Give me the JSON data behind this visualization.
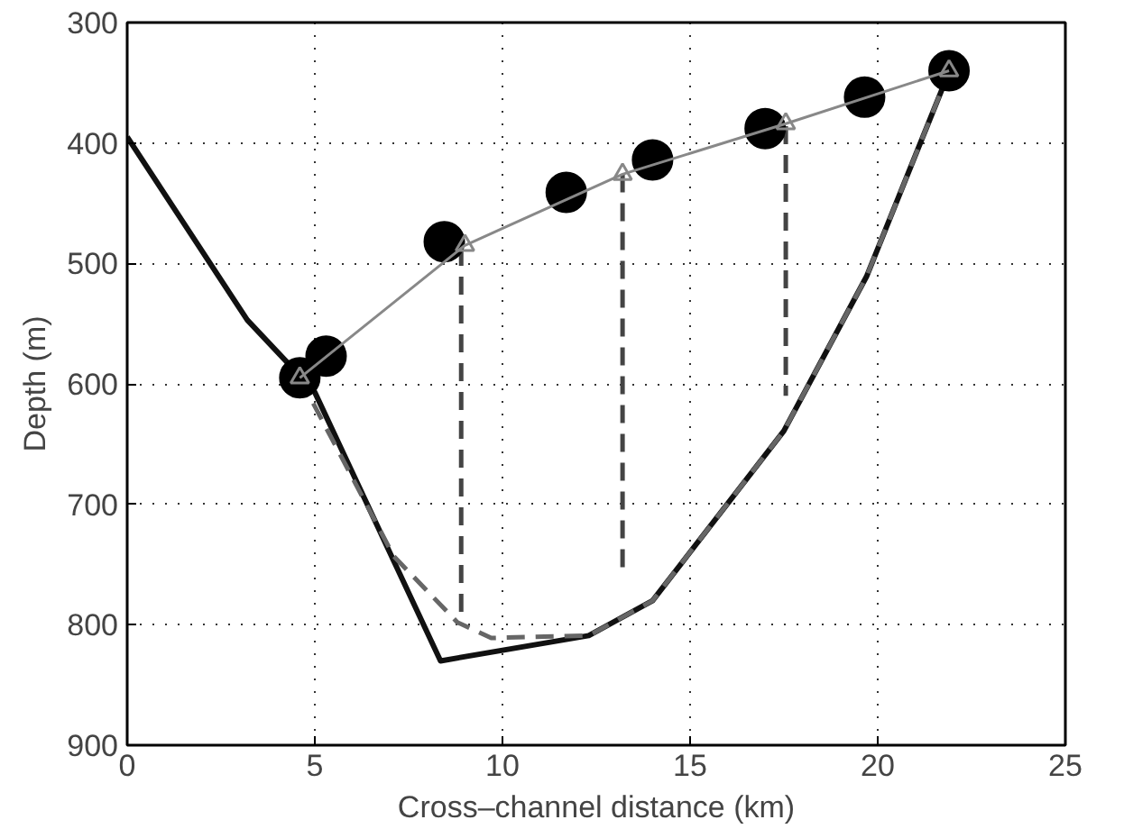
{
  "chart_data": {
    "type": "line",
    "xlabel": "Cross–channel distance (km)",
    "ylabel": "Depth (m)",
    "xlim": [
      0,
      25
    ],
    "ylim": [
      900,
      300
    ],
    "xticks": [
      0,
      5,
      10,
      15,
      20,
      25
    ],
    "yticks": [
      300,
      400,
      500,
      600,
      700,
      800,
      900
    ],
    "grid": true,
    "series": [
      {
        "color": "#111111",
        "line_style": "solid",
        "x": [
          0,
          3.2,
          4.5,
          5.0,
          8.35,
          12.3,
          14.0,
          17.5,
          19.7,
          21.9
        ],
        "values": [
          395,
          547,
          590,
          607,
          830,
          809,
          780,
          639,
          511,
          341
        ]
      },
      {
        "color": "#666666",
        "line_style": "dashed",
        "x": [
          4.6,
          7.1,
          8.8,
          9.7,
          12.3,
          14.0,
          17.5,
          19.7,
          21.9
        ],
        "values": [
          595,
          743,
          798,
          811,
          809,
          780,
          639,
          511,
          341
        ]
      },
      {
        "color": "#444444",
        "line_style": "dashed",
        "x": [
          8.9,
          8.9
        ],
        "values": [
          487,
          798
        ]
      },
      {
        "color": "#444444",
        "line_style": "dashed",
        "x": [
          13.2,
          13.2
        ],
        "values": [
          426,
          756
        ]
      },
      {
        "color": "#444444",
        "line_style": "dashed",
        "x": [
          17.55,
          17.55
        ],
        "values": [
          386,
          610
        ]
      },
      {
        "type": "scatter",
        "color": "#000000",
        "marker": "circle",
        "x": [
          5.3,
          8.45,
          11.7,
          14.0,
          17.0,
          19.65
        ],
        "values": [
          577,
          482,
          441,
          414,
          388,
          362
        ]
      },
      {
        "type": "scatter",
        "color": "#000000",
        "marker": "circle",
        "x": [
          4.6,
          21.9
        ],
        "values": [
          595,
          340
        ]
      },
      {
        "color": "#888888",
        "marker": "triangle",
        "line_style": "solid",
        "x": [
          4.6,
          9.0,
          13.2,
          17.55,
          21.9
        ],
        "values": [
          595,
          485,
          426,
          384,
          340
        ]
      }
    ]
  }
}
